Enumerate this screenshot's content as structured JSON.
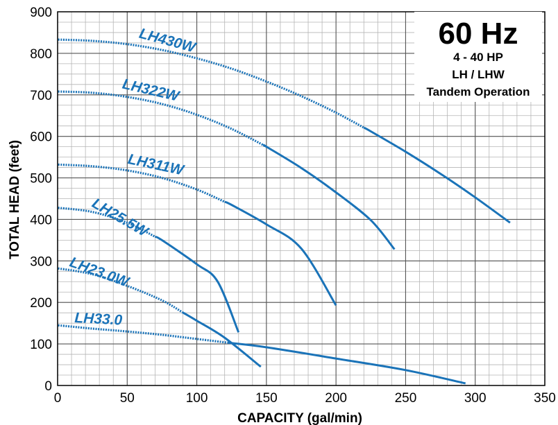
{
  "chart_data": {
    "type": "line",
    "xlabel": "CAPACITY (gal/min)",
    "ylabel": "TOTAL HEAD (feet)",
    "xlim": [
      0,
      350
    ],
    "ylim": [
      0,
      900
    ],
    "x_ticks": [
      0,
      50,
      100,
      150,
      200,
      250,
      300,
      350
    ],
    "y_ticks": [
      0,
      100,
      200,
      300,
      400,
      500,
      600,
      700,
      800,
      900
    ],
    "grid": true,
    "info_box": {
      "title": "60 Hz",
      "lines": [
        "4 - 40 HP",
        "LH / LHW",
        "Tandem Operation"
      ]
    },
    "line_color": "#1a73b8",
    "series": [
      {
        "name": "LH430W",
        "dashed_until": 220,
        "x": [
          -5,
          0,
          25,
          50,
          75,
          100,
          125,
          150,
          175,
          200,
          225,
          250,
          275,
          300,
          325
        ],
        "y": [
          833,
          833,
          830,
          822,
          808,
          788,
          763,
          732,
          697,
          657,
          612,
          563,
          510,
          453,
          392
        ]
      },
      {
        "name": "LH322W",
        "dashed_until": 150,
        "x": [
          -5,
          0,
          25,
          50,
          75,
          100,
          125,
          150,
          175,
          200,
          225,
          242
        ],
        "y": [
          708,
          708,
          705,
          695,
          678,
          652,
          618,
          575,
          524,
          465,
          398,
          328
        ]
      },
      {
        "name": "LH311W",
        "dashed_until": 120,
        "x": [
          -5,
          0,
          25,
          50,
          75,
          100,
          125,
          150,
          175,
          200
        ],
        "y": [
          532,
          532,
          528,
          518,
          500,
          472,
          435,
          388,
          330,
          193
        ]
      },
      {
        "name": "LH25.5W",
        "dashed_until": 70,
        "x": [
          -5,
          0,
          25,
          50,
          75,
          100,
          115,
          130
        ],
        "y": [
          428,
          428,
          418,
          392,
          350,
          292,
          250,
          128
        ]
      },
      {
        "name": "LH23.0W",
        "dashed_until": 90,
        "x": [
          -5,
          0,
          25,
          50,
          75,
          100,
          120,
          146
        ],
        "y": [
          282,
          282,
          268,
          240,
          205,
          156,
          115,
          45
        ]
      },
      {
        "name": "LH33.0",
        "dashed_until": 125,
        "x": [
          -5,
          0,
          25,
          50,
          75,
          100,
          125,
          150,
          200,
          250,
          293
        ],
        "y": [
          145,
          145,
          137,
          130,
          122,
          112,
          102,
          92,
          65,
          37,
          5
        ]
      }
    ],
    "curve_labels": [
      {
        "series": "LH430W",
        "text": "LH430W"
      },
      {
        "series": "LH322W",
        "text": "LH322W"
      },
      {
        "series": "LH311W",
        "text": "LH311W"
      },
      {
        "series": "LH25.5W",
        "text": "LH25.5W"
      },
      {
        "series": "LH23.0W",
        "text": "LH23.0W"
      },
      {
        "series": "LH33.0",
        "text": "LH33.0"
      }
    ]
  }
}
